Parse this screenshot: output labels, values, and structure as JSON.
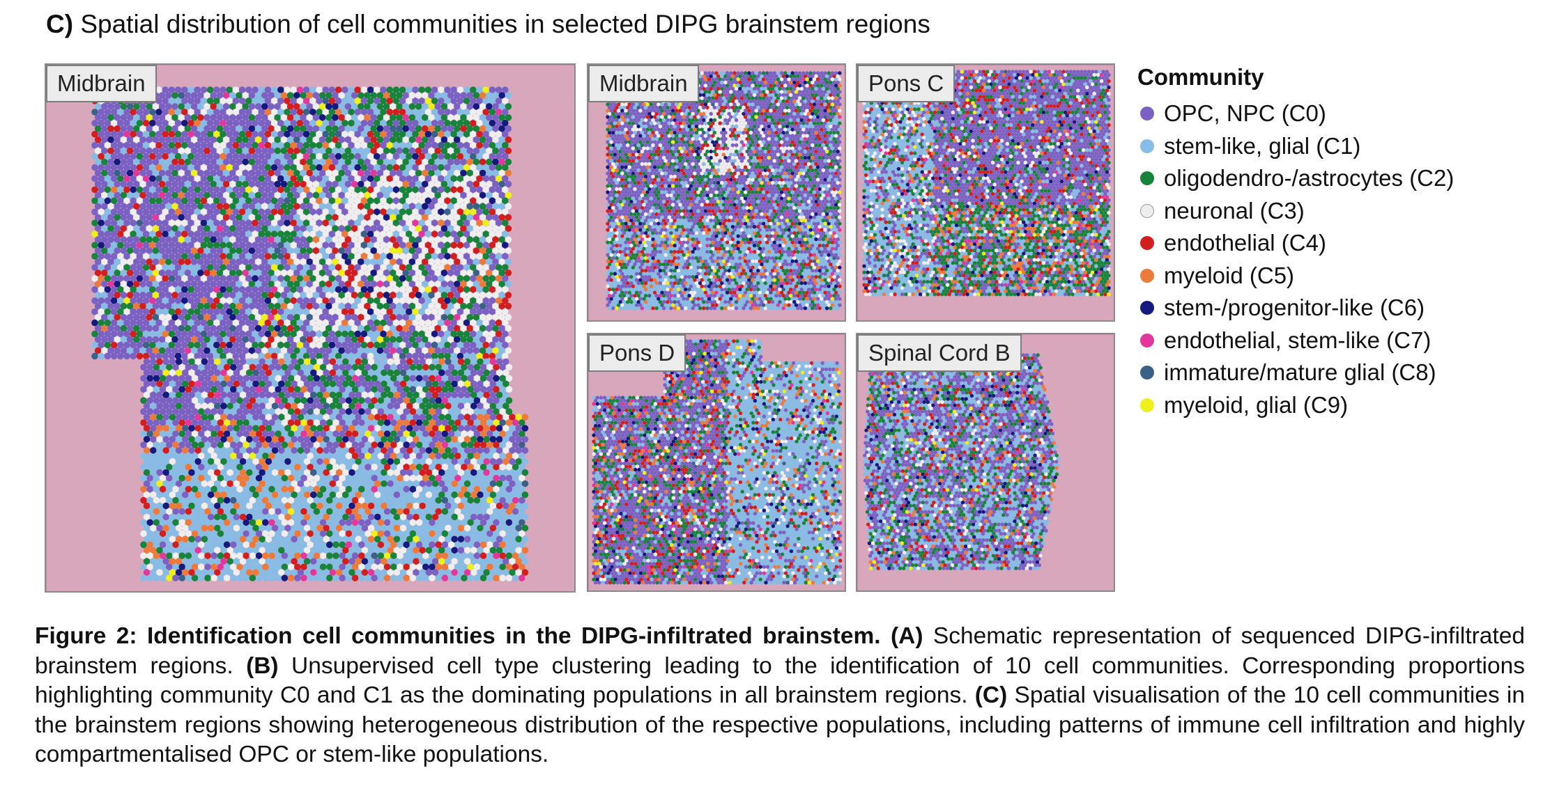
{
  "panel": {
    "letter": "C)",
    "title": "Spatial distribution of cell communities in selected DIPG brainstem regions"
  },
  "tiles": [
    {
      "id": "midbrain-large",
      "label": "Midbrain"
    },
    {
      "id": "midbrain-small",
      "label": "Midbrain"
    },
    {
      "id": "pons-c",
      "label": "Pons C"
    },
    {
      "id": "pons-d",
      "label": "Pons D"
    },
    {
      "id": "spinal-cord-b",
      "label": "Spinal Cord B"
    }
  ],
  "legend": {
    "title": "Community",
    "items": [
      {
        "label": "OPC, NPC (C0)",
        "color": "#7a62c4"
      },
      {
        "label": "stem-like, glial (C1)",
        "color": "#86bde6"
      },
      {
        "label": "oligodendro-/astrocytes (C2)",
        "color": "#16843a"
      },
      {
        "label": "neuronal (C3)",
        "color": "#eeeeee"
      },
      {
        "label": "endothelial (C4)",
        "color": "#d11f1f"
      },
      {
        "label": "myeloid (C5)",
        "color": "#ec7a3a"
      },
      {
        "label": "stem-/progenitor-like (C6)",
        "color": "#141a7e"
      },
      {
        "label": "endothelial, stem-like (C7)",
        "color": "#e2389e"
      },
      {
        "label": "immature/mature glial (C8)",
        "color": "#3a6289"
      },
      {
        "label": "myeloid, glial (C9)",
        "color": "#eef01a"
      }
    ]
  },
  "caption": {
    "figure_label": "Figure 2:",
    "figure_title": "Identification cell communities in the DIPG-infiltrated brainstem.",
    "a_label": "(A)",
    "a_text": "Schematic representation of sequenced DIPG-infiltrated brainstem regions.",
    "b_label": "(B)",
    "b_text": "Unsupervised cell type clustering leading to the identification of 10 cell communities. Corresponding proportions highlighting community C0 and C1 as the dominating populations in all brainstem regions.",
    "c_label": "(C)",
    "c_text": "Spatial visualisation of the 10 cell communities in the brainstem regions showing heterogeneous distribution of the respective populations, including patterns of immune cell infiltration and highly compartmentalised OPC or stem-like populations."
  }
}
